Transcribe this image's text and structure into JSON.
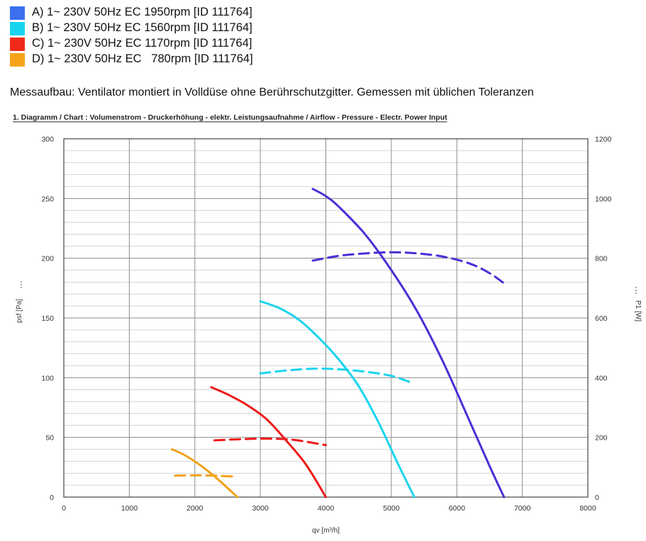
{
  "legend": [
    {
      "label": "A) 1~ 230V 50Hz EC 1950rpm [ID 111764]",
      "color": "#3a6ff0"
    },
    {
      "label": "B) 1~ 230V 50Hz EC 1560rpm [ID 111764]",
      "color": "#1ad4ee"
    },
    {
      "label": "C) 1~ 230V 50Hz EC 1170rpm [ID 111764]",
      "color": "#f02a1a"
    },
    {
      "label": "D) 1~ 230V 50Hz EC   780rpm [ID 111764]",
      "color": "#f7a21a"
    }
  ],
  "setup_note": "Messaufbau: Ventilator montiert in Volldüse ohne Berührschutzgitter. Gemessen mit üblichen  Toleranzen",
  "chart_data": {
    "type": "line",
    "title": "1. Diagramm / Chart :   Volumenstrom - Druckerhöhung - elektr. Leistungsaufnahme / Airflow - Pressure - Electr. Power Input",
    "xlabel": "qv [m³/h]",
    "ylabel": "psf [Pa]",
    "y2label": "P1 [W]",
    "xlim": [
      0,
      8000
    ],
    "ylim": [
      0,
      300
    ],
    "y2lim": [
      0,
      1200
    ],
    "xticks": [
      "0",
      "1000",
      "2000",
      "3000",
      "4000",
      "5000",
      "6000",
      "7000",
      "8000"
    ],
    "yticks": [
      "0",
      "50",
      "100",
      "150",
      "200",
      "250",
      "300"
    ],
    "y2ticks": [
      "0",
      "200",
      "400",
      "600",
      "800",
      "1000",
      "1200"
    ],
    "grid": true,
    "series": [
      {
        "key": "A",
        "kind": "pressure",
        "axis": "left",
        "color": "#4a2fd6",
        "x": [
          3800,
          4000,
          4200,
          4600,
          5000,
          5400,
          5800,
          6200,
          6500,
          6720
        ],
        "y": [
          258,
          252,
          243,
          220,
          190,
          155,
          112,
          63,
          26,
          0
        ]
      },
      {
        "key": "A",
        "kind": "power",
        "axis": "right",
        "color": "#4a2fd6",
        "x": [
          3800,
          4200,
          4600,
          5000,
          5400,
          5800,
          6200,
          6500,
          6720
        ],
        "y": [
          792,
          808,
          816,
          820,
          816,
          805,
          782,
          750,
          716
        ]
      },
      {
        "key": "B",
        "kind": "pressure",
        "axis": "left",
        "color": "#1ad4ee",
        "x": [
          3000,
          3300,
          3600,
          3900,
          4200,
          4500,
          4800,
          5100,
          5350
        ],
        "y": [
          164,
          158,
          148,
          133,
          115,
          93,
          63,
          28,
          0
        ]
      },
      {
        "key": "B",
        "kind": "power",
        "axis": "right",
        "color": "#1ad4ee",
        "x": [
          3000,
          3400,
          3800,
          4200,
          4600,
          5000,
          5350
        ],
        "y": [
          414,
          424,
          430,
          428,
          420,
          406,
          380
        ]
      },
      {
        "key": "C",
        "kind": "pressure",
        "axis": "left",
        "color": "#ee1a1a",
        "x": [
          2250,
          2500,
          2800,
          3100,
          3400,
          3700,
          4000
        ],
        "y": [
          92,
          86,
          77,
          65,
          47,
          27,
          0
        ]
      },
      {
        "key": "C",
        "kind": "power",
        "axis": "right",
        "color": "#ee1a1a",
        "x": [
          2300,
          2700,
          3100,
          3500,
          4000
        ],
        "y": [
          190,
          194,
          196,
          192,
          174
        ]
      },
      {
        "key": "D",
        "kind": "pressure",
        "axis": "left",
        "color": "#f2a21a",
        "x": [
          1650,
          1850,
          2100,
          2350,
          2650
        ],
        "y": [
          40,
          35,
          26,
          15,
          0
        ]
      },
      {
        "key": "D",
        "kind": "power",
        "axis": "right",
        "color": "#f2a21a",
        "x": [
          1700,
          2000,
          2300,
          2650
        ],
        "y": [
          72,
          73,
          72,
          68
        ]
      }
    ]
  }
}
